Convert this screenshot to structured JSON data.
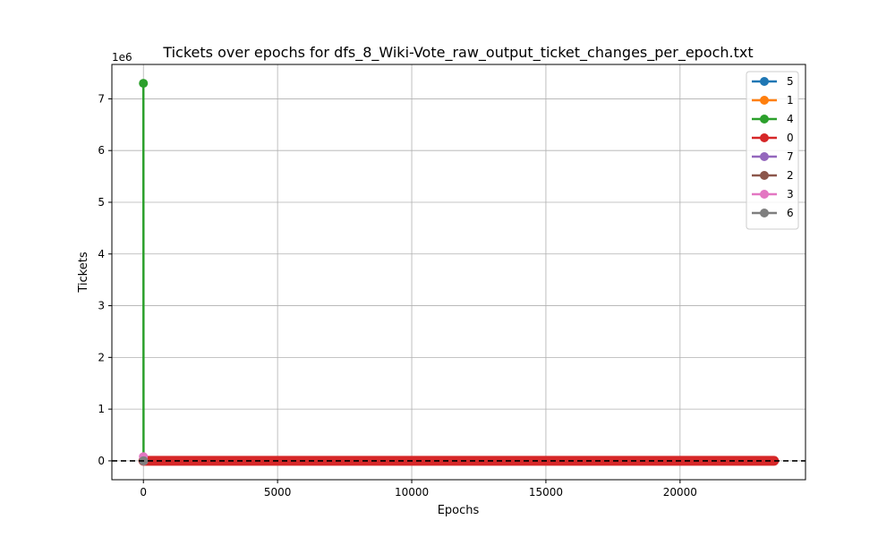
{
  "chart_data": {
    "type": "line",
    "title": "Tickets over epochs for dfs_8_Wiki-Vote_raw_output_ticket_changes_per_epoch.txt",
    "xlabel": "Epochs",
    "ylabel": "Tickets",
    "y_offset_text": "1e6",
    "xlim": [
      -1175,
      24675
    ],
    "ylim": [
      -365000,
      7665000
    ],
    "xticks": [
      0,
      5000,
      10000,
      15000,
      20000
    ],
    "xtick_labels": [
      "0",
      "5000",
      "10000",
      "15000",
      "20000"
    ],
    "yticks": [
      0,
      1000000,
      2000000,
      3000000,
      4000000,
      5000000,
      6000000,
      7000000
    ],
    "ytick_labels": [
      "0",
      "1",
      "2",
      "3",
      "4",
      "5",
      "6",
      "7"
    ],
    "grid": true,
    "legend_position": "top-right",
    "reference_line": {
      "y": 0,
      "style": "dashed",
      "color": "#000000"
    },
    "series": [
      {
        "name": "5",
        "color": "#1f77b4",
        "x": [
          0,
          10
        ],
        "y": [
          0,
          0
        ]
      },
      {
        "name": "1",
        "color": "#ff7f0e",
        "x": [
          0,
          10
        ],
        "y": [
          0,
          0
        ]
      },
      {
        "name": "4",
        "color": "#2ca02c",
        "x": [
          0,
          5,
          10
        ],
        "y": [
          7300000,
          0,
          0
        ]
      },
      {
        "name": "0",
        "color": "#d62728",
        "x_range": [
          0,
          23500
        ],
        "constant_y": 0
      },
      {
        "name": "7",
        "color": "#9467bd",
        "x": [
          0,
          10
        ],
        "y": [
          0,
          0
        ]
      },
      {
        "name": "2",
        "color": "#8c564b",
        "x": [
          0,
          10
        ],
        "y": [
          0,
          0
        ]
      },
      {
        "name": "3",
        "color": "#e377c2",
        "x": [
          0,
          10
        ],
        "y": [
          80000,
          0
        ]
      },
      {
        "name": "6",
        "color": "#7f7f7f",
        "x": [
          0,
          10
        ],
        "y": [
          0,
          0
        ]
      }
    ]
  }
}
